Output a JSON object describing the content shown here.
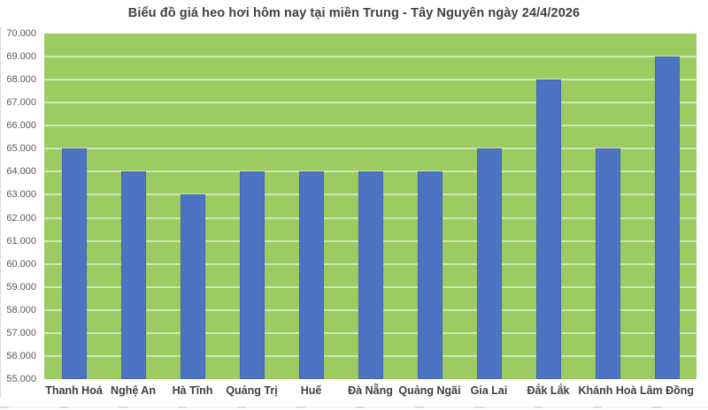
{
  "page": {
    "background": "#ffffff"
  },
  "chart_data": {
    "type": "bar",
    "title": "Biểu đồ giá heo hơi hôm nay tại miền Trung - Tây Nguyên ngày 24/4/2026",
    "categories": [
      "Thanh Hoá",
      "Nghệ An",
      "Hà Tĩnh",
      "Quảng Trị",
      "Huế",
      "Đà Nẵng",
      "Quảng Ngãi",
      "Gia Lai",
      "Đắk Lắk",
      "Khánh Hoà",
      "Lâm Đồng"
    ],
    "values": [
      65000,
      64000,
      63000,
      64000,
      64000,
      64000,
      64000,
      65000,
      68000,
      65000,
      69000
    ],
    "xlabel": "",
    "ylabel": "",
    "ylim": [
      55000,
      70000
    ],
    "ytick_step": 1000,
    "yticks": [
      {
        "value": 55000,
        "label": "55.000"
      },
      {
        "value": 56000,
        "label": "56.000"
      },
      {
        "value": 57000,
        "label": "57.000"
      },
      {
        "value": 58000,
        "label": "58.000"
      },
      {
        "value": 59000,
        "label": "59.000"
      },
      {
        "value": 60000,
        "label": "60.000"
      },
      {
        "value": 61000,
        "label": "61.000"
      },
      {
        "value": 62000,
        "label": "62.000"
      },
      {
        "value": 63000,
        "label": "63.000"
      },
      {
        "value": 64000,
        "label": "64.000"
      },
      {
        "value": 65000,
        "label": "65.000"
      },
      {
        "value": 66000,
        "label": "66.000"
      },
      {
        "value": 67000,
        "label": "67.000"
      },
      {
        "value": 68000,
        "label": "68.000"
      },
      {
        "value": 69000,
        "label": "69.000"
      },
      {
        "value": 70000,
        "label": "70.000"
      }
    ],
    "grid": "horizontal",
    "legend": "none",
    "colors": {
      "bar": "#4d73c3",
      "bar_border": "rgba(54, 84, 146, 0.45)",
      "plot_background": "#9ccb62",
      "gridline": "rgba(255, 255, 255, 0.55)",
      "title_text": "#3f3f3f",
      "axis_tick_text": "#595959",
      "category_text": "#404040"
    }
  }
}
